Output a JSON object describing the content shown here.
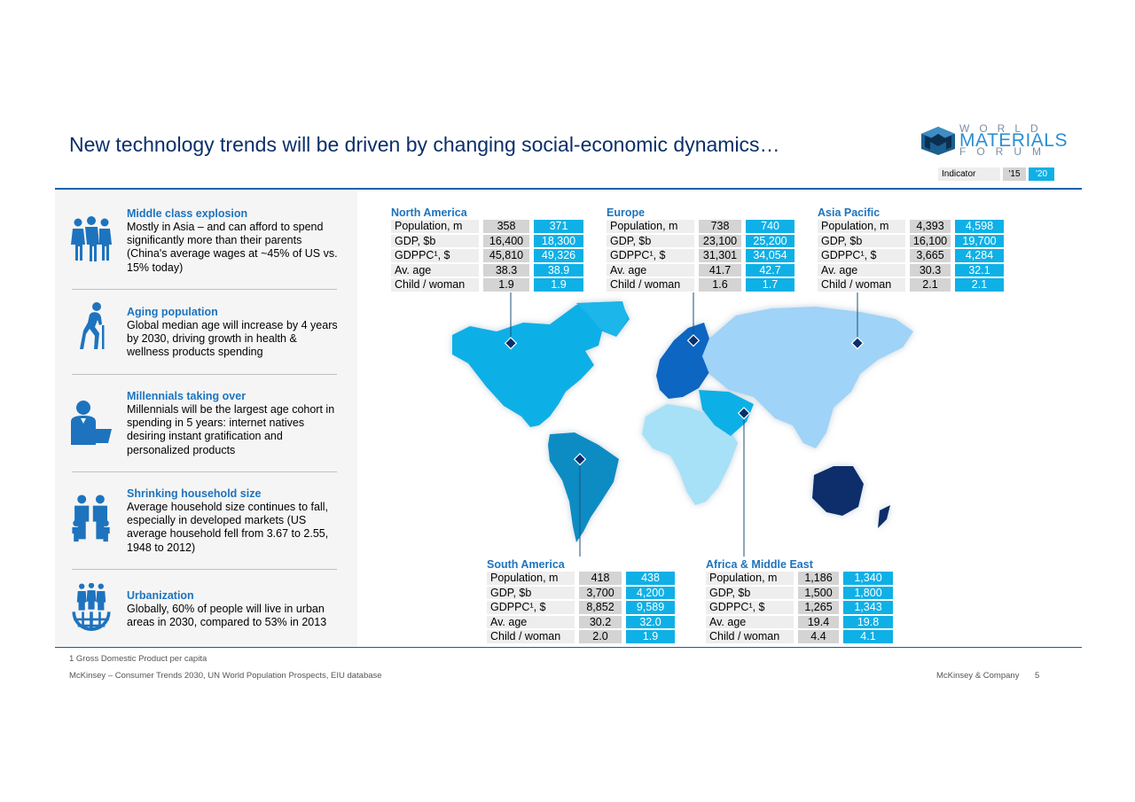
{
  "title": "New technology trends will be driven by changing social-economic dynamics…",
  "logo": {
    "line1": "WORLD",
    "line2": "MATERIALS",
    "line3": "FORUM"
  },
  "legend": {
    "indicator": "Indicator",
    "y15": "'15",
    "y20": "'20"
  },
  "colors": {
    "accent": "#1e73be",
    "title": "#0b2f6b",
    "value2020": "#0fb0e6",
    "value2015": "#d4d4d4",
    "rule": "#0a62a8"
  },
  "trends": [
    {
      "icon": "middle-class-icon",
      "title": "Middle class explosion",
      "text": "Mostly in Asia – and can afford to spend significantly more than their parents (China's average wages at ~45% of US vs. 15% today)"
    },
    {
      "icon": "aging-icon",
      "title": "Aging population",
      "text": "Global median age will increase by 4 years by 2030, driving growth in health & wellness products spending"
    },
    {
      "icon": "millennial-icon",
      "title": "Millennials taking over",
      "text": "Millennials will be the largest age cohort in spending in 5 years: internet natives desiring instant gratification and personalized products"
    },
    {
      "icon": "household-icon",
      "title": "Shrinking household size",
      "text": "Average household size continues to fall, especially in developed markets (US average household fell from 3.67 to 2.55, 1948 to 2012)"
    },
    {
      "icon": "urbanization-icon",
      "title": "Urbanization",
      "text": "Globally, 60% of people will live in urban areas in 2030, compared to 53% in 2013"
    }
  ],
  "regions": {
    "north_america": {
      "name": "North America",
      "rows": [
        {
          "label": "Population, m",
          "y15": "358",
          "y20": "371"
        },
        {
          "label": "GDP, $b",
          "y15": "16,400",
          "y20": "18,300"
        },
        {
          "label": "GDPPC¹, $",
          "y15": "45,810",
          "y20": "49,326"
        },
        {
          "label": "Av. age",
          "y15": "38.3",
          "y20": "38.9"
        },
        {
          "label": "Child / woman",
          "y15": "1.9",
          "y20": "1.9"
        }
      ]
    },
    "europe": {
      "name": "Europe",
      "rows": [
        {
          "label": "Population, m",
          "y15": "738",
          "y20": "740"
        },
        {
          "label": "GDP, $b",
          "y15": "23,100",
          "y20": "25,200"
        },
        {
          "label": "GDPPC¹, $",
          "y15": "31,301",
          "y20": "34,054"
        },
        {
          "label": "Av. age",
          "y15": "41.7",
          "y20": "42.7"
        },
        {
          "label": "Child / woman",
          "y15": "1.6",
          "y20": "1.7"
        }
      ]
    },
    "asia_pacific": {
      "name": "Asia Pacific",
      "rows": [
        {
          "label": "Population, m",
          "y15": "4,393",
          "y20": "4,598"
        },
        {
          "label": "GDP, $b",
          "y15": "16,100",
          "y20": "19,700"
        },
        {
          "label": "GDPPC¹, $",
          "y15": "3,665",
          "y20": "4,284"
        },
        {
          "label": "Av. age",
          "y15": "30.3",
          "y20": "32.1"
        },
        {
          "label": "Child / woman",
          "y15": "2.1",
          "y20": "2.1"
        }
      ]
    },
    "south_america": {
      "name": "South America",
      "rows": [
        {
          "label": "Population, m",
          "y15": "418",
          "y20": "438"
        },
        {
          "label": "GDP, $b",
          "y15": "3,700",
          "y20": "4,200"
        },
        {
          "label": "GDPPC¹, $",
          "y15": "8,852",
          "y20": "9,589"
        },
        {
          "label": "Av. age",
          "y15": "30.2",
          "y20": "32.0"
        },
        {
          "label": "Child / woman",
          "y15": "2.0",
          "y20": "1.9"
        }
      ]
    },
    "africa_me": {
      "name": "Africa & Middle East",
      "rows": [
        {
          "label": "Population, m",
          "y15": "1,186",
          "y20": "1,340"
        },
        {
          "label": "GDP, $b",
          "y15": "1,500",
          "y20": "1,800"
        },
        {
          "label": "GDPPC¹, $",
          "y15": "1,265",
          "y20": "1,343"
        },
        {
          "label": "Av. age",
          "y15": "19.4",
          "y20": "19.8"
        },
        {
          "label": "Child / woman",
          "y15": "4.4",
          "y20": "4.1"
        }
      ]
    }
  },
  "footnote": "1 Gross Domestic Product per capita",
  "source": "McKinsey – Consumer Trends 2030, UN World Population Prospects, EIU database",
  "company": "McKinsey & Company",
  "page_number": "5"
}
